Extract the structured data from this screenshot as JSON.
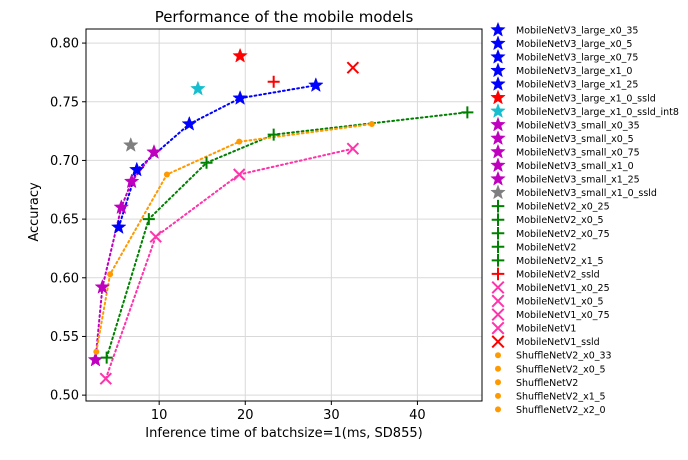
{
  "chart_data": {
    "type": "scatter",
    "title": "Performance of the mobile models",
    "xlabel": "Inference time of batchsize=1(ms, SD855)",
    "ylabel": "Accuracy",
    "xlim": [
      1.5,
      47.5
    ],
    "ylim": [
      0.495,
      0.812
    ],
    "x_ticks": [
      "10",
      "20",
      "30",
      "40"
    ],
    "x_tick_values": [
      10,
      20,
      30,
      40
    ],
    "y_ticks": [
      "0.50",
      "0.55",
      "0.60",
      "0.65",
      "0.70",
      "0.75",
      "0.80"
    ],
    "y_tick_values": [
      0.5,
      0.55,
      0.6,
      0.65,
      0.7,
      0.75,
      0.8
    ],
    "grid": true,
    "legend_position": "right, outside plot",
    "series": [
      {
        "name": "MobileNetV3_large_x0_35",
        "marker": "star",
        "color": "#0000ff",
        "points": [
          [
            5.3,
            0.643
          ]
        ]
      },
      {
        "name": "MobileNetV3_large_x0_5",
        "marker": "star",
        "color": "#0000ff",
        "points": [
          [
            7.4,
            0.692
          ]
        ]
      },
      {
        "name": "MobileNetV3_large_x0_75",
        "marker": "star",
        "color": "#0000ff",
        "points": [
          [
            13.5,
            0.731
          ]
        ]
      },
      {
        "name": "MobileNetV3_large_x1_0",
        "marker": "star",
        "color": "#0000ff",
        "points": [
          [
            19.4,
            0.753
          ]
        ]
      },
      {
        "name": "MobileNetV3_large_x1_25",
        "marker": "star",
        "color": "#0000ff",
        "points": [
          [
            28.2,
            0.764
          ]
        ]
      },
      {
        "name": "MobileNetV3_large_x1_0_ssld",
        "marker": "star",
        "color": "#ff0000",
        "points": [
          [
            19.4,
            0.789
          ]
        ]
      },
      {
        "name": "MobileNetV3_large_x1_0_ssld_int8",
        "marker": "star",
        "color": "#17becf",
        "points": [
          [
            14.5,
            0.761
          ]
        ]
      },
      {
        "name": "MobileNetV3_small_x0_35",
        "marker": "star",
        "color": "#bf00bf",
        "points": [
          [
            2.6,
            0.53
          ]
        ]
      },
      {
        "name": "MobileNetV3_small_x0_5",
        "marker": "star",
        "color": "#bf00bf",
        "points": [
          [
            3.4,
            0.592
          ]
        ]
      },
      {
        "name": "MobileNetV3_small_x0_75",
        "marker": "star",
        "color": "#bf00bf",
        "points": [
          [
            5.6,
            0.66
          ]
        ]
      },
      {
        "name": "MobileNetV3_small_x1_0",
        "marker": "star",
        "color": "#bf00bf",
        "points": [
          [
            6.8,
            0.682
          ]
        ]
      },
      {
        "name": "MobileNetV3_small_x1_25",
        "marker": "star",
        "color": "#bf00bf",
        "points": [
          [
            9.4,
            0.707
          ]
        ]
      },
      {
        "name": "MobileNetV3_small_x1_0_ssld",
        "marker": "star",
        "color": "#7f7f7f",
        "points": [
          [
            6.7,
            0.713
          ]
        ]
      },
      {
        "name": "MobileNetV2_x0_25",
        "marker": "plus",
        "color": "#008000",
        "points": [
          [
            3.9,
            0.532
          ]
        ]
      },
      {
        "name": "MobileNetV2_x0_5",
        "marker": "plus",
        "color": "#008000",
        "points": [
          [
            8.8,
            0.65
          ]
        ]
      },
      {
        "name": "MobileNetV2_x0_75",
        "marker": "plus",
        "color": "#008000",
        "points": [
          [
            15.5,
            0.698
          ]
        ]
      },
      {
        "name": "MobileNetV2",
        "marker": "plus",
        "color": "#008000",
        "points": [
          [
            23.3,
            0.722
          ]
        ]
      },
      {
        "name": "MobileNetV2_x1_5",
        "marker": "plus",
        "color": "#008000",
        "points": [
          [
            45.8,
            0.741
          ]
        ]
      },
      {
        "name": "MobileNetV2_ssld",
        "marker": "plus",
        "color": "#ff0000",
        "points": [
          [
            23.3,
            0.767
          ]
        ]
      },
      {
        "name": "MobileNetV1_x0_25",
        "marker": "x",
        "color": "#ff33aa",
        "points": [
          [
            3.8,
            0.514
          ]
        ]
      },
      {
        "name": "MobileNetV1_x0_5",
        "marker": "x",
        "color": "#ff33aa",
        "points": [
          [
            9.6,
            0.635
          ]
        ]
      },
      {
        "name": "MobileNetV1_x0_75",
        "marker": "x",
        "color": "#ff33aa",
        "points": [
          [
            19.3,
            0.688
          ]
        ]
      },
      {
        "name": "MobileNetV1",
        "marker": "x",
        "color": "#ff33aa",
        "points": [
          [
            32.5,
            0.71
          ]
        ]
      },
      {
        "name": "MobileNetV1_ssld",
        "marker": "x",
        "color": "#ff0000",
        "points": [
          [
            32.5,
            0.779
          ]
        ]
      },
      {
        "name": "ShuffleNetV2_x0_33",
        "marker": "dot",
        "color": "#ff9900",
        "points": [
          [
            2.7,
            0.537
          ]
        ]
      },
      {
        "name": "ShuffleNetV2_x0_5",
        "marker": "dot",
        "color": "#ff9900",
        "points": [
          [
            4.3,
            0.603
          ]
        ]
      },
      {
        "name": "ShuffleNetV2",
        "marker": "dot",
        "color": "#ff9900",
        "points": [
          [
            10.9,
            0.688
          ]
        ]
      },
      {
        "name": "ShuffleNetV2_x1_5",
        "marker": "dot",
        "color": "#ff9900",
        "points": [
          [
            19.3,
            0.716
          ]
        ]
      },
      {
        "name": "ShuffleNetV2_x2_0",
        "marker": "dot",
        "color": "#ff9900",
        "points": [
          [
            34.7,
            0.731
          ]
        ]
      }
    ],
    "trend_lines": [
      {
        "color": "#0000ff",
        "points": [
          [
            5.3,
            0.643
          ],
          [
            7.4,
            0.692
          ],
          [
            13.5,
            0.731
          ],
          [
            19.4,
            0.753
          ],
          [
            28.2,
            0.764
          ]
        ]
      },
      {
        "color": "#bf00bf",
        "points": [
          [
            2.6,
            0.53
          ],
          [
            3.4,
            0.592
          ],
          [
            5.6,
            0.66
          ],
          [
            6.8,
            0.682
          ],
          [
            9.4,
            0.707
          ]
        ]
      },
      {
        "color": "#008000",
        "points": [
          [
            3.9,
            0.532
          ],
          [
            8.8,
            0.65
          ],
          [
            15.5,
            0.698
          ],
          [
            23.3,
            0.722
          ],
          [
            45.8,
            0.741
          ]
        ]
      },
      {
        "color": "#ff33aa",
        "points": [
          [
            3.8,
            0.514
          ],
          [
            9.6,
            0.635
          ],
          [
            19.3,
            0.688
          ],
          [
            32.5,
            0.71
          ]
        ]
      },
      {
        "color": "#ff9900",
        "points": [
          [
            2.7,
            0.537
          ],
          [
            4.3,
            0.603
          ],
          [
            10.9,
            0.688
          ],
          [
            19.3,
            0.716
          ],
          [
            34.7,
            0.731
          ]
        ]
      }
    ]
  }
}
